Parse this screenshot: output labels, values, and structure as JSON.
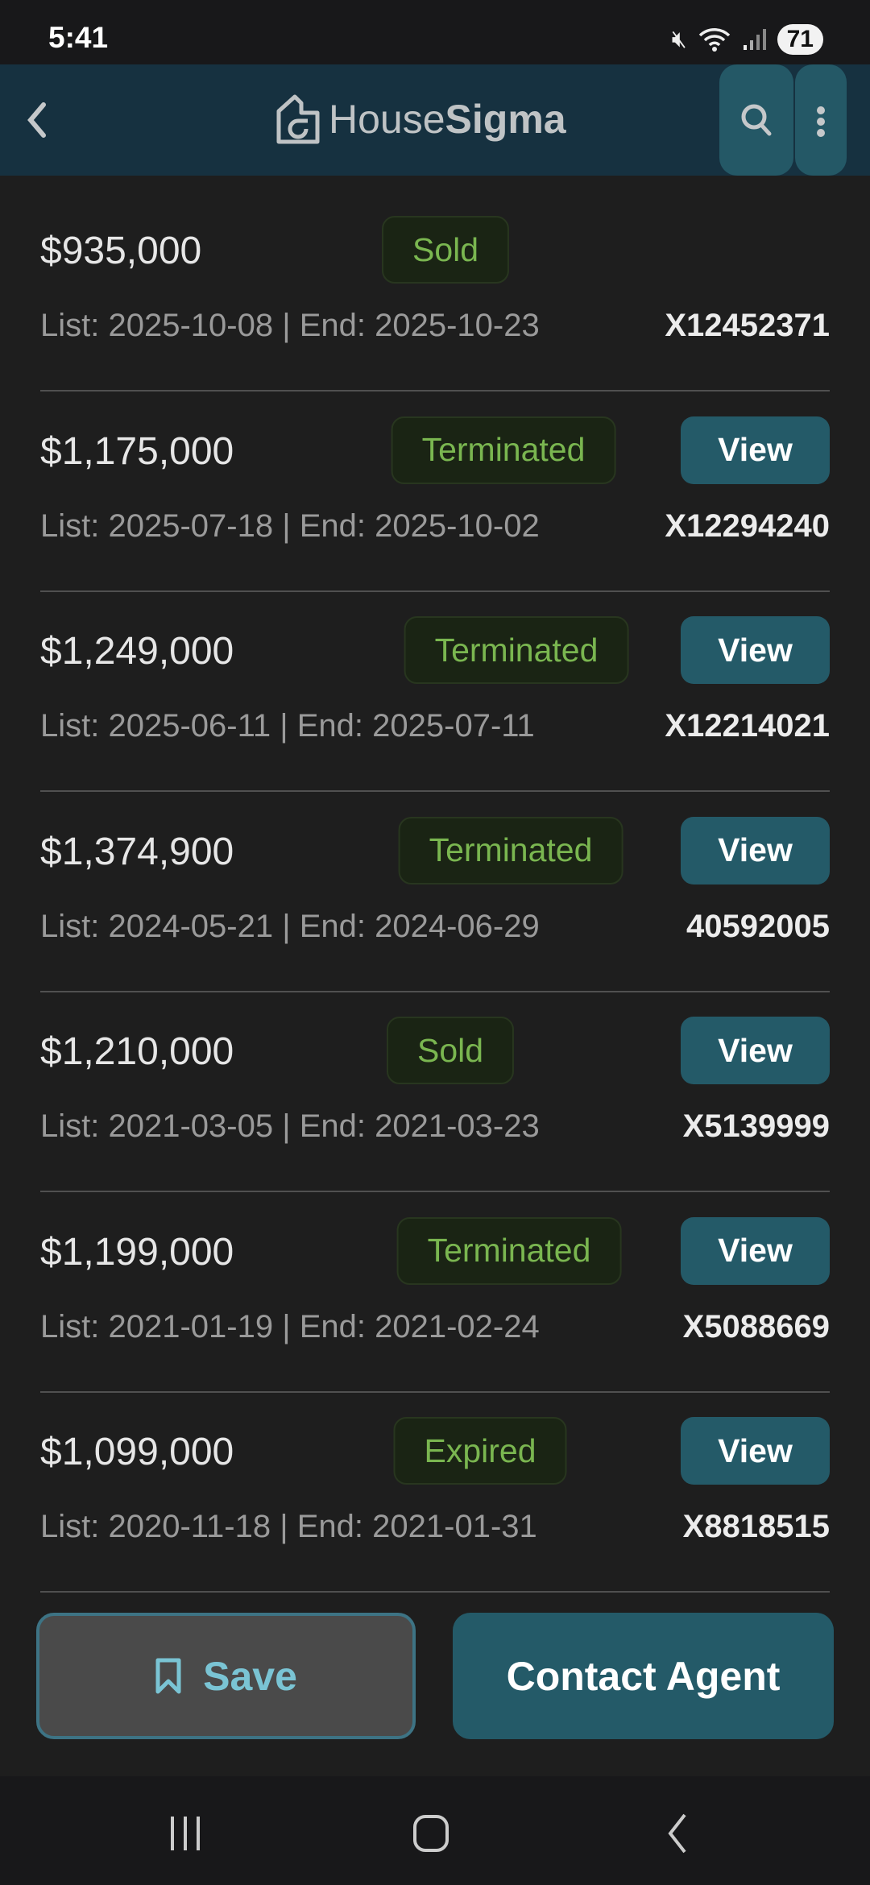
{
  "status_bar": {
    "time": "5:41",
    "battery": "71"
  },
  "header": {
    "logo_text_light": "House",
    "logo_text_bold": "Sigma"
  },
  "history": [
    {
      "price": "$935,000",
      "status": "Sold",
      "list": "List: 2025-10-08",
      "end": "End: 2025-10-23",
      "mls": "X12452371",
      "view": null
    },
    {
      "price": "$1,175,000",
      "status": "Terminated",
      "list": "List: 2025-07-18",
      "end": "End: 2025-10-02",
      "mls": "X12294240",
      "view": "View"
    },
    {
      "price": "$1,249,000",
      "status": "Terminated",
      "list": "List: 2025-06-11",
      "end": "End: 2025-07-11",
      "mls": "X12214021",
      "view": "View"
    },
    {
      "price": "$1,374,900",
      "status": "Terminated",
      "list": "List: 2024-05-21",
      "end": "End: 2024-06-29",
      "mls": "40592005",
      "view": "View"
    },
    {
      "price": "$1,210,000",
      "status": "Sold",
      "list": "List: 2021-03-05",
      "end": "End: 2021-03-23",
      "mls": "X5139999",
      "view": "View"
    },
    {
      "price": "$1,199,000",
      "status": "Terminated",
      "list": "List: 2021-01-19",
      "end": "End: 2021-02-24",
      "mls": "X5088669",
      "view": "View"
    },
    {
      "price": "$1,099,000",
      "status": "Expired",
      "list": "List: 2020-11-18",
      "end": "End: 2021-01-31",
      "mls": "X8818515",
      "view": "View"
    }
  ],
  "actions": {
    "save": "Save",
    "contact": "Contact Agent"
  },
  "colors": {
    "accent": "#245a68",
    "status_green": "#7ab650",
    "header_bg": "#163140"
  }
}
